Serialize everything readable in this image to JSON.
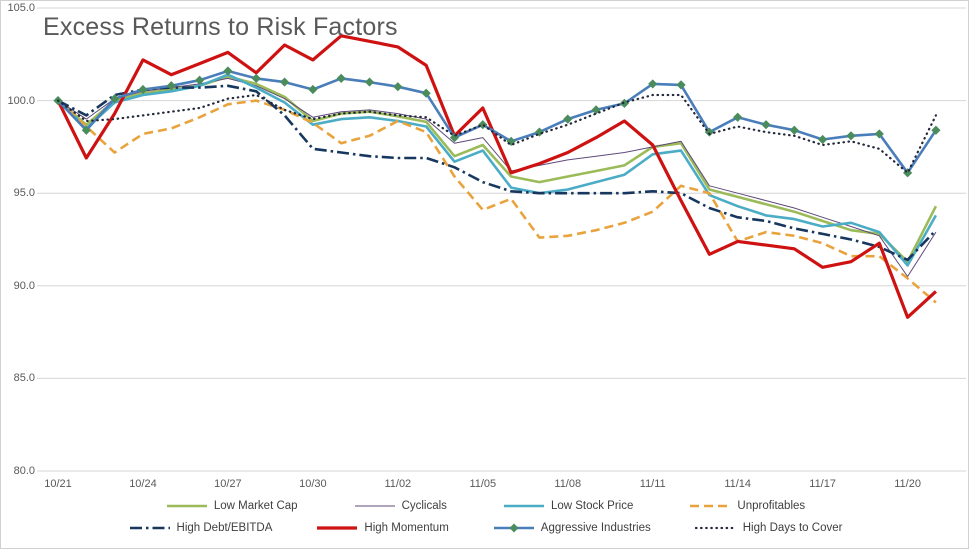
{
  "chart_data": {
    "type": "line",
    "title": "Excess Returns to Risk Factors",
    "xlabel": "",
    "ylabel": "",
    "ylim": [
      80.0,
      105.0
    ],
    "yticks": [
      105.0,
      100.0,
      95.0,
      90.0,
      85.0,
      80.0
    ],
    "ytick_labels": [
      "105.0",
      "100.0",
      "95.0",
      "90.0",
      "85.0",
      "80.0"
    ],
    "grid": "horizontal",
    "legend_position": "bottom",
    "x_dates": [
      "10/21",
      "10/22",
      "10/23",
      "10/24",
      "10/25",
      "10/26",
      "10/27",
      "10/28",
      "10/29",
      "10/30",
      "10/31",
      "11/01",
      "11/02",
      "11/03",
      "11/04",
      "11/05",
      "11/06",
      "11/07",
      "11/08",
      "11/09",
      "11/10",
      "11/11",
      "11/12",
      "11/13",
      "11/14",
      "11/15",
      "11/16",
      "11/17",
      "11/18",
      "11/19",
      "11/20",
      "11/21"
    ],
    "x_tick_indices": [
      0,
      3,
      6,
      9,
      12,
      15,
      18,
      21,
      24,
      27,
      30
    ],
    "x_tick_labels": [
      "10/21",
      "10/24",
      "10/27",
      "10/30",
      "11/02",
      "11/05",
      "11/08",
      "11/11",
      "11/14",
      "11/17",
      "11/20"
    ],
    "legend_rows": [
      [
        0,
        1,
        2,
        3
      ],
      [
        4,
        5,
        6,
        7
      ]
    ],
    "series": [
      {
        "name": "Low Market Cap",
        "color": "#9BBB59",
        "style": "solid",
        "width": 2.6,
        "marker": "none",
        "values": [
          100.0,
          98.7,
          100.0,
          100.4,
          100.6,
          100.8,
          101.3,
          100.9,
          100.2,
          98.9,
          99.3,
          99.4,
          99.15,
          98.85,
          97.0,
          97.6,
          95.9,
          95.6,
          95.9,
          96.2,
          96.5,
          97.5,
          97.7,
          95.2,
          94.8,
          94.4,
          94.0,
          93.5,
          93.0,
          92.8,
          91.3,
          94.3
        ]
      },
      {
        "name": "Cyclicals",
        "color": "#604A7B",
        "style": "solid",
        "width": 1.0,
        "marker": "none",
        "values": [
          100.0,
          99.0,
          100.1,
          100.5,
          100.7,
          100.9,
          101.2,
          100.8,
          100.1,
          99.1,
          99.4,
          99.5,
          99.3,
          99.0,
          97.7,
          98.0,
          96.2,
          96.5,
          96.8,
          97.0,
          97.2,
          97.5,
          97.8,
          95.4,
          95.0,
          94.6,
          94.2,
          93.7,
          93.2,
          92.7,
          90.5,
          92.9
        ]
      },
      {
        "name": "Low Stock Price",
        "color": "#4BACC6",
        "style": "solid",
        "width": 2.6,
        "marker": "none",
        "values": [
          100.0,
          98.5,
          99.9,
          100.3,
          100.5,
          100.8,
          101.4,
          100.7,
          99.9,
          98.7,
          99.0,
          99.1,
          98.9,
          98.6,
          96.7,
          97.3,
          95.3,
          95.0,
          95.2,
          95.6,
          96.0,
          97.1,
          97.3,
          94.9,
          94.3,
          93.8,
          93.6,
          93.2,
          93.4,
          92.9,
          91.1,
          93.8
        ]
      },
      {
        "name": "Unprofitables",
        "color": "#E8A33D",
        "style": "dash",
        "width": 2.6,
        "marker": "none",
        "values": [
          100.0,
          98.6,
          97.2,
          98.2,
          98.5,
          99.1,
          99.8,
          100.0,
          99.5,
          98.8,
          97.7,
          98.1,
          98.9,
          98.3,
          95.9,
          94.1,
          94.7,
          92.6,
          92.7,
          93.0,
          93.4,
          94.0,
          95.4,
          95.0,
          92.4,
          92.9,
          92.7,
          92.3,
          91.6,
          91.6,
          90.4,
          89.1
        ]
      },
      {
        "name": "High Debt/EBITDA",
        "color": "#17375E",
        "style": "dashdot",
        "width": 2.6,
        "marker": "none",
        "values": [
          100.0,
          99.2,
          100.3,
          100.6,
          100.7,
          100.7,
          100.8,
          100.5,
          99.2,
          97.4,
          97.2,
          97.0,
          96.9,
          96.9,
          96.4,
          95.6,
          95.1,
          95.0,
          95.0,
          95.0,
          95.0,
          95.1,
          95.0,
          94.2,
          93.7,
          93.5,
          93.1,
          92.8,
          92.5,
          92.1,
          91.4,
          93.0
        ]
      },
      {
        "name": "High Momentum",
        "color": "#CE1212",
        "style": "solid",
        "width": 3.2,
        "marker": "none",
        "values": [
          100.0,
          96.9,
          99.3,
          102.2,
          101.4,
          102.0,
          102.6,
          101.5,
          103.0,
          102.2,
          103.5,
          103.2,
          102.9,
          101.9,
          98.1,
          99.6,
          96.1,
          96.6,
          97.2,
          98.0,
          98.9,
          97.6,
          94.6,
          91.7,
          92.4,
          92.2,
          92.0,
          91.0,
          91.3,
          92.3,
          88.3,
          89.7
        ]
      },
      {
        "name": "Aggressive Industries",
        "color": "#4A7EBB",
        "style": "solid",
        "width": 2.6,
        "marker": "diamond",
        "marker_color": "#4A8C5C",
        "values": [
          100.0,
          98.4,
          100.1,
          100.6,
          100.8,
          101.1,
          101.6,
          101.2,
          101.0,
          100.6,
          101.2,
          101.0,
          100.75,
          100.4,
          98.0,
          98.7,
          97.8,
          98.3,
          99.0,
          99.5,
          99.85,
          100.9,
          100.85,
          98.3,
          99.1,
          98.7,
          98.4,
          97.9,
          98.1,
          98.2,
          96.1,
          98.4
        ]
      },
      {
        "name": "High Days to Cover",
        "color": "#23283A",
        "style": "dotted",
        "width": 2.2,
        "marker": "none",
        "values": [
          100.0,
          98.9,
          99.0,
          99.2,
          99.4,
          99.6,
          100.1,
          100.3,
          99.5,
          99.0,
          99.3,
          99.4,
          99.2,
          99.1,
          98.1,
          98.7,
          97.6,
          98.2,
          98.7,
          99.3,
          99.9,
          100.3,
          100.3,
          98.2,
          98.6,
          98.3,
          98.1,
          97.6,
          97.8,
          97.4,
          96.1,
          99.2
        ]
      }
    ],
    "colors": {
      "gridline": "#D6D6D6",
      "title_text": "#595959",
      "axis_text": "#595959",
      "legend_text": "#3F3F3F",
      "background": "#FFFFFF"
    }
  }
}
